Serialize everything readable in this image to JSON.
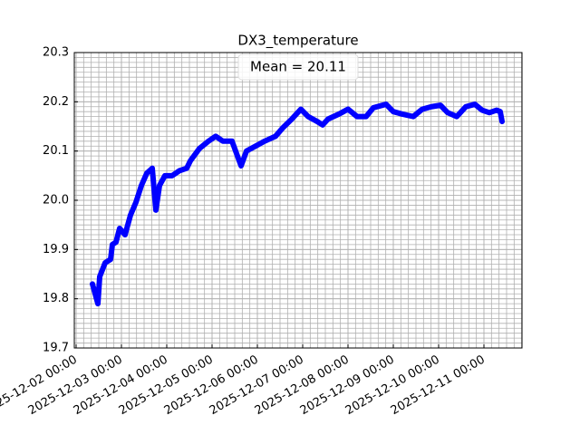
{
  "chart_data": {
    "type": "line",
    "title": "DX3_temperature",
    "annotation": "Mean = 20.11",
    "x": [
      "2025-12-02 08:38",
      "2025-12-02 11:31",
      "2025-12-02 12:29",
      "2025-12-02 15:22",
      "2025-12-02 18:14",
      "2025-12-02 19:12",
      "2025-12-02 21:07",
      "2025-12-02 23:02",
      "2025-12-03 01:55",
      "2025-12-03 04:48",
      "2025-12-03 07:41",
      "2025-12-03 10:34",
      "2025-12-03 13:26",
      "2025-12-03 16:19",
      "2025-12-03 18:14",
      "2025-12-03 20:10",
      "2025-12-03 23:02",
      "2025-12-04 02:53",
      "2025-12-04 06:43",
      "2025-12-04 10:34",
      "2025-12-04 12:29",
      "2025-12-04 17:17",
      "2025-12-04 22:05",
      "2025-12-05 01:55",
      "2025-12-05 05:46",
      "2025-12-05 10:34",
      "2025-12-05 13:26",
      "2025-12-05 15:22",
      "2025-12-05 18:14",
      "2025-12-05 23:02",
      "2025-12-06 03:50",
      "2025-12-06 09:36",
      "2025-12-06 13:26",
      "2025-12-06 18:14",
      "2025-12-06 23:02",
      "2025-12-07 02:53",
      "2025-12-07 07:41",
      "2025-12-07 10:34",
      "2025-12-07 13:26",
      "2025-12-07 19:12",
      "2025-12-08 00:00",
      "2025-12-08 04:48",
      "2025-12-08 09:36",
      "2025-12-08 13:26",
      "2025-12-08 20:10",
      "2025-12-09 00:00",
      "2025-12-09 04:48",
      "2025-12-09 10:34",
      "2025-12-09 15:22",
      "2025-12-09 20:10",
      "2025-12-10 00:58",
      "2025-12-10 04:48",
      "2025-12-10 09:36",
      "2025-12-10 14:24",
      "2025-12-10 19:12",
      "2025-12-10 23:02",
      "2025-12-11 02:53",
      "2025-12-11 06:43",
      "2025-12-11 08:38",
      "2025-12-11 09:36"
    ],
    "series": [
      {
        "name": "DX3_temperature",
        "color": "#0000ff",
        "values": [
          19.83,
          19.79,
          19.845,
          19.873,
          19.88,
          19.91,
          19.915,
          19.943,
          19.93,
          19.97,
          19.996,
          20.03,
          20.055,
          20.065,
          19.98,
          20.03,
          20.05,
          20.05,
          20.06,
          20.065,
          20.08,
          20.105,
          20.12,
          20.13,
          20.12,
          20.12,
          20.09,
          20.07,
          20.1,
          20.11,
          20.12,
          20.13,
          20.147,
          20.165,
          20.185,
          20.17,
          20.16,
          20.153,
          20.165,
          20.175,
          20.185,
          20.17,
          20.17,
          20.188,
          20.195,
          20.18,
          20.175,
          20.17,
          20.185,
          20.19,
          20.193,
          20.178,
          20.17,
          20.19,
          20.195,
          20.183,
          20.178,
          20.183,
          20.18,
          20.16
        ]
      }
    ],
    "xlim": [
      "2025-12-01 23:02",
      "2025-12-11 20:10"
    ],
    "xticks": [
      "2025-12-02 00:00",
      "2025-12-03 00:00",
      "2025-12-04 00:00",
      "2025-12-05 00:00",
      "2025-12-06 00:00",
      "2025-12-07 00:00",
      "2025-12-08 00:00",
      "2025-12-09 00:00",
      "2025-12-10 00:00",
      "2025-12-11 00:00"
    ],
    "ylim": [
      19.7,
      20.3
    ],
    "yticks": [
      {
        "value": 19.7,
        "label": "19.7"
      },
      {
        "value": 19.8,
        "label": "19.8"
      },
      {
        "value": 19.9,
        "label": "19.9"
      },
      {
        "value": 20.0,
        "label": "20.0"
      },
      {
        "value": 20.1,
        "label": "20.1"
      },
      {
        "value": 20.2,
        "label": "20.2"
      },
      {
        "value": 20.3,
        "label": "20.3"
      }
    ],
    "grid": true,
    "minor_divisions": {
      "x": 6,
      "y": 10
    }
  }
}
